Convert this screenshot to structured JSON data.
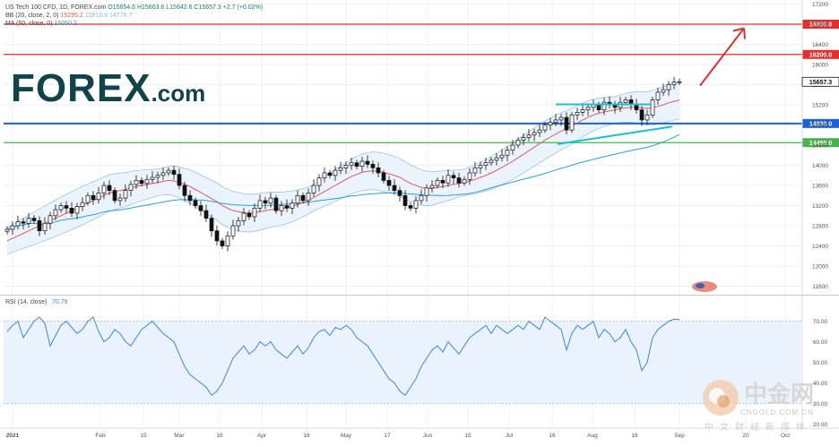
{
  "header": {
    "symbol": "US Tech 100 CFD, 1D, FOREX.com",
    "open": "O15654.6",
    "high": "H15663.6",
    "low": "L15642.6",
    "close": "C15657.3",
    "change": "+2.7 (+0.02%)",
    "bb_label": "BB (20, close, 2, 0)",
    "bb_mid": "15295.2",
    "bb_up": "15813.8",
    "bb_low": "14776.7",
    "ma_label": "MA (50, close, 0)",
    "ma_val": "15050.2"
  },
  "logo": {
    "main": "FOREX",
    "suffix": ".com"
  },
  "watermark": {
    "cn": "中金网",
    "url": "CNGOLD.COM.CN",
    "sub": "中文财经新媒体"
  },
  "colors": {
    "bb_mid": "#e05a5a",
    "ma": "#2a9fd6",
    "bb_band": "#7fb2e0",
    "rsi": "#3c86d8",
    "resistance": "#e03030",
    "support_blue": "#1e62d8",
    "support_green": "#4caf50",
    "channel": "#18c0d0"
  },
  "chart_data": [
    {
      "type": "candlestick",
      "title": "US Tech 100 CFD, 1D, FOREX.com",
      "y_ticks": [
        11600,
        12000,
        12400,
        12800,
        13200,
        13600,
        14000,
        14400,
        14800,
        15200,
        15600,
        16000,
        16400,
        16800,
        17200
      ],
      "ylim": [
        11450,
        17280
      ],
      "x_ticks": [
        "2021",
        "Feb",
        "15",
        "Mar",
        "16",
        "Apr",
        "16",
        "May",
        "17",
        "Jun",
        "15",
        "Jul",
        "16",
        "Aug",
        "16",
        "Sep",
        "20",
        "Oct"
      ],
      "last_price": 15657.3,
      "levels": [
        {
          "label": "16800.0",
          "value": 16800,
          "color": "#e03030"
        },
        {
          "label": "16200.0",
          "value": 16200,
          "color": "#e03030"
        },
        {
          "label": "14830.0",
          "value": 14830,
          "color": "#1e62d8"
        },
        {
          "label": "14450.0",
          "value": 14450,
          "color": "#4caf50"
        }
      ],
      "closes": [
        12730,
        12800,
        12880,
        12850,
        12950,
        12900,
        12700,
        12850,
        13000,
        13120,
        13200,
        13150,
        13050,
        13180,
        13260,
        13400,
        13320,
        13450,
        13600,
        13500,
        13300,
        13350,
        13500,
        13620,
        13700,
        13640,
        13720,
        13760,
        13800,
        13850,
        13900,
        13820,
        13600,
        13400,
        13300,
        13200,
        13100,
        12950,
        12700,
        12500,
        12400,
        12600,
        12800,
        12900,
        13050,
        12980,
        13150,
        13300,
        13250,
        13350,
        13100,
        13200,
        13150,
        13250,
        13400,
        13300,
        13450,
        13600,
        13750,
        13850,
        13800,
        13900,
        13950,
        14000,
        14050,
        13980,
        14080,
        14020,
        13950,
        13850,
        13700,
        13600,
        13500,
        13400,
        13200,
        13150,
        13300,
        13400,
        13550,
        13600,
        13700,
        13650,
        13800,
        13750,
        13650,
        13720,
        13850,
        13950,
        14000,
        14050,
        14100,
        14150,
        14200,
        14300,
        14400,
        14500,
        14550,
        14600,
        14650,
        14700,
        14800,
        14850,
        14900,
        14950,
        14700,
        15000,
        15050,
        15100,
        15150,
        15200,
        15100,
        15250,
        15200,
        15150,
        15250,
        15300,
        15200,
        15100,
        14900,
        15000,
        15300,
        15450,
        15500,
        15600,
        15650,
        15657
      ],
      "bb_mid": [
        12500,
        12550,
        12600,
        12650,
        12700,
        12750,
        12800,
        12850,
        12900,
        12950,
        13000,
        13050,
        13100,
        13150,
        13200,
        13250,
        13300,
        13350,
        13400,
        13450,
        13480,
        13500,
        13520,
        13550,
        13580,
        13600,
        13620,
        13640,
        13660,
        13680,
        13700,
        13690,
        13660,
        13620,
        13580,
        13520,
        13460,
        13400,
        13340,
        13280,
        13200,
        13150,
        13100,
        13080,
        13060,
        13050,
        13060,
        13080,
        13100,
        13120,
        13130,
        13140,
        13160,
        13180,
        13220,
        13260,
        13300,
        13360,
        13420,
        13480,
        13540,
        13600,
        13660,
        13720,
        13780,
        13820,
        13860,
        13880,
        13890,
        13880,
        13860,
        13830,
        13800,
        13760,
        13700,
        13640,
        13600,
        13560,
        13540,
        13540,
        13560,
        13580,
        13600,
        13620,
        13640,
        13660,
        13690,
        13720,
        13760,
        13800,
        13850,
        13900,
        13960,
        14020,
        14080,
        14150,
        14220,
        14290,
        14360,
        14430,
        14500,
        14560,
        14620,
        14680,
        14720,
        14780,
        14840,
        14900,
        14950,
        15000,
        15030,
        15060,
        15080,
        15100,
        15120,
        15140,
        15150,
        15150,
        15140,
        15130,
        15140,
        15170,
        15200,
        15240,
        15270,
        15295
      ]
    },
    {
      "type": "line",
      "title": "RSI (14, close)",
      "current": 70.79,
      "y_ticks": [
        20,
        30,
        40,
        50,
        60,
        70
      ],
      "ylim": [
        18,
        82
      ],
      "overbought": 70,
      "values": [
        65,
        68,
        70,
        62,
        66,
        70,
        72,
        69,
        58,
        63,
        68,
        70,
        67,
        64,
        66,
        70,
        72,
        65,
        60,
        62,
        66,
        64,
        60,
        58,
        62,
        66,
        68,
        70,
        67,
        64,
        62,
        60,
        54,
        48,
        44,
        42,
        40,
        38,
        34,
        36,
        40,
        46,
        52,
        55,
        58,
        54,
        56,
        60,
        58,
        60,
        56,
        54,
        52,
        55,
        58,
        54,
        57,
        62,
        65,
        66,
        63,
        67,
        66,
        68,
        66,
        62,
        60,
        58,
        54,
        50,
        46,
        42,
        40,
        36,
        34,
        38,
        42,
        48,
        52,
        56,
        58,
        55,
        60,
        57,
        54,
        58,
        62,
        64,
        66,
        68,
        64,
        68,
        66,
        64,
        66,
        68,
        66,
        70,
        68,
        66,
        72,
        70,
        68,
        66,
        56,
        64,
        68,
        66,
        68,
        70,
        62,
        66,
        64,
        60,
        62,
        66,
        60,
        56,
        46,
        50,
        62,
        66,
        68,
        70,
        71,
        70.79
      ]
    }
  ]
}
